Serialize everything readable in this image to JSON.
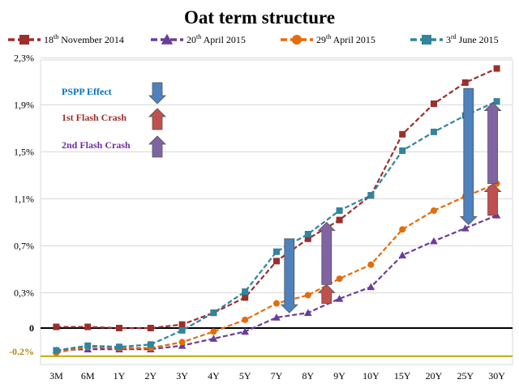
{
  "chart_data": {
    "type": "line",
    "title": "Oat term structure",
    "categories": [
      "3M",
      "6M",
      "1Y",
      "2Y",
      "3Y",
      "4Y",
      "5Y",
      "7Y",
      "8Y",
      "9Y",
      "10Y",
      "15Y",
      "20Y",
      "25Y",
      "30Y"
    ],
    "y_ticks": [
      "2,3%",
      "1,9%",
      "1,5%",
      "1,1%",
      "0,7%",
      "0,3%",
      "0",
      "-0.2%"
    ],
    "y_tick_values": [
      2.3,
      1.9,
      1.5,
      1.1,
      0.7,
      0.3,
      0,
      -0.2
    ],
    "ylim": [
      -0.25,
      2.3
    ],
    "grid": "horizontal",
    "legend_position": "top",
    "reference_lines": [
      {
        "value": 0,
        "color": "#000000"
      },
      {
        "value": -0.24,
        "color": "#b8a800"
      }
    ],
    "series": [
      {
        "name": "18th November 2014",
        "color": "#9b2f2c",
        "marker": "square",
        "values": [
          0.01,
          0.01,
          0.0,
          0.0,
          0.03,
          0.13,
          0.26,
          0.57,
          0.76,
          0.92,
          1.13,
          1.65,
          1.91,
          2.09,
          2.21
        ]
      },
      {
        "name": "20th April 2015",
        "color": "#6a3d9a",
        "marker": "triangle",
        "values": [
          -0.19,
          -0.18,
          -0.18,
          -0.18,
          -0.15,
          -0.09,
          -0.03,
          0.09,
          0.13,
          0.25,
          0.35,
          0.62,
          0.74,
          0.85,
          0.96
        ]
      },
      {
        "name": "29th April 2015",
        "color": "#e46c0a",
        "marker": "circle",
        "values": [
          -0.21,
          -0.16,
          -0.17,
          -0.17,
          -0.12,
          -0.03,
          0.07,
          0.21,
          0.28,
          0.42,
          0.54,
          0.84,
          1.0,
          1.12,
          1.23
        ]
      },
      {
        "name": "3rd June 2015",
        "color": "#31859c",
        "marker": "square",
        "values": [
          -0.19,
          -0.15,
          -0.16,
          -0.14,
          -0.02,
          0.13,
          0.31,
          0.65,
          0.8,
          1.0,
          1.13,
          1.51,
          1.67,
          1.81,
          1.93
        ]
      }
    ],
    "legend": [
      {
        "pre": "18",
        "sup": "th",
        "post": " November 2014"
      },
      {
        "pre": "20",
        "sup": "th",
        "post": " April 2015"
      },
      {
        "pre": "29",
        "sup": "th",
        "post": " April 2015"
      },
      {
        "pre": "3",
        "sup": "rd",
        "post": " June 2015"
      }
    ],
    "annotations": [
      {
        "label": "PSPP Effect",
        "color": "#0070c0",
        "arrow": "down",
        "arrow_color": "#4f81bd"
      },
      {
        "label": "1st Flash Crash",
        "color": "#9b2f2c",
        "arrow": "up",
        "arrow_color": "#c0504d"
      },
      {
        "label": "2nd Flash Crash",
        "color": "#7030a0",
        "arrow": "up",
        "arrow_color": "#8064a2"
      }
    ],
    "chart_arrows": [
      {
        "kind": "PSPP Effect",
        "direction": "down",
        "category": "8Y",
        "from": 0.76,
        "to": 0.13
      },
      {
        "kind": "1st Flash Crash",
        "direction": "up",
        "category": "8Y",
        "from": 0.21,
        "to": 0.37
      },
      {
        "kind": "2nd Flash Crash",
        "direction": "up",
        "category": "8Y",
        "from": 0.37,
        "to": 0.9
      },
      {
        "kind": "PSPP Effect",
        "direction": "down",
        "category": "25Y",
        "from": 2.04,
        "to": 0.88
      },
      {
        "kind": "1st Flash Crash",
        "direction": "up",
        "category": "25Y",
        "from": 0.96,
        "to": 1.23
      },
      {
        "kind": "2nd Flash Crash",
        "direction": "up",
        "category": "25Y",
        "from": 1.23,
        "to": 1.92
      }
    ]
  }
}
